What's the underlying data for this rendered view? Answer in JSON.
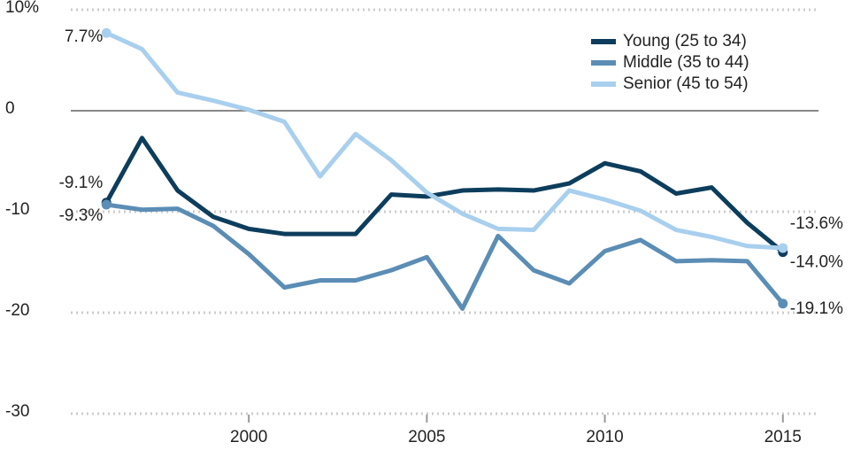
{
  "chart_data": {
    "type": "line",
    "x": [
      1996,
      1997,
      1998,
      1999,
      2000,
      2001,
      2002,
      2003,
      2004,
      2005,
      2006,
      2007,
      2008,
      2009,
      2010,
      2011,
      2012,
      2013,
      2014,
      2015
    ],
    "series": [
      {
        "name": "Young (25 to 34)",
        "color": "#0d3d5c",
        "values": [
          -9.1,
          -2.7,
          -7.9,
          -10.5,
          -11.7,
          -12.2,
          -12.2,
          -12.2,
          -8.3,
          -8.5,
          -7.9,
          -7.8,
          -7.9,
          -7.2,
          -5.2,
          -6.0,
          -8.2,
          -7.6,
          -11.1,
          -14.0
        ],
        "value_labels": [
          "-9.1%",
          null,
          null,
          null,
          null,
          null,
          null,
          null,
          null,
          null,
          null,
          null,
          null,
          null,
          null,
          null,
          null,
          null,
          null,
          "-14.0%"
        ]
      },
      {
        "name": "Middle (35 to 44)",
        "color": "#5b8db5",
        "values": [
          -9.3,
          -9.8,
          -9.7,
          -11.4,
          -14.2,
          -17.5,
          -16.8,
          -16.8,
          -15.8,
          -14.5,
          -19.6,
          -12.4,
          -15.8,
          -17.1,
          -13.9,
          -12.8,
          -14.9,
          -14.8,
          -14.9,
          -19.1
        ],
        "value_labels": [
          "-9.3%",
          null,
          null,
          null,
          null,
          null,
          null,
          null,
          null,
          null,
          null,
          null,
          null,
          null,
          null,
          null,
          null,
          null,
          null,
          "-19.1%"
        ]
      },
      {
        "name": "Senior (45 to 54)",
        "color": "#a9cfee",
        "values": [
          7.7,
          6.1,
          1.8,
          1.0,
          0.1,
          -1.1,
          -6.5,
          -2.3,
          -4.9,
          -8.1,
          -10.2,
          -11.7,
          -11.8,
          -7.9,
          -8.8,
          -9.9,
          -11.8,
          -12.5,
          -13.4,
          -13.6
        ],
        "value_labels": [
          "7.7%",
          null,
          null,
          null,
          null,
          null,
          null,
          null,
          null,
          null,
          null,
          null,
          null,
          null,
          null,
          null,
          null,
          null,
          null,
          "-13.6%"
        ]
      }
    ],
    "xlim": [
      1995,
      2016
    ],
    "xticks": [
      2000,
      2005,
      2010,
      2015
    ],
    "ylim": [
      -30,
      10
    ],
    "yticks": [
      {
        "value": 10,
        "label": "10%"
      },
      0,
      -10,
      -20,
      -30
    ],
    "grid": true,
    "legend": "upper right"
  }
}
